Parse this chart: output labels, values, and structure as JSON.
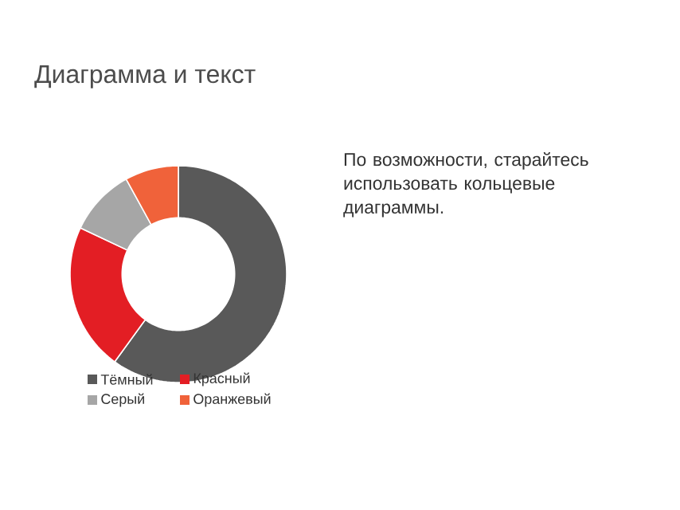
{
  "chart_data": {
    "type": "donut",
    "title": "Диаграмма и текст",
    "categories": [
      "Тёмный",
      "Красный",
      "Серый",
      "Оранжевый"
    ],
    "values": [
      60,
      22,
      10,
      8
    ],
    "colors": [
      "#595959",
      "#e31e24",
      "#a6a6a6",
      "#f0623a"
    ],
    "legend": "bottom",
    "annotations": [
      "По возможности, старайтесь использовать кольцевые диаграммы."
    ]
  }
}
